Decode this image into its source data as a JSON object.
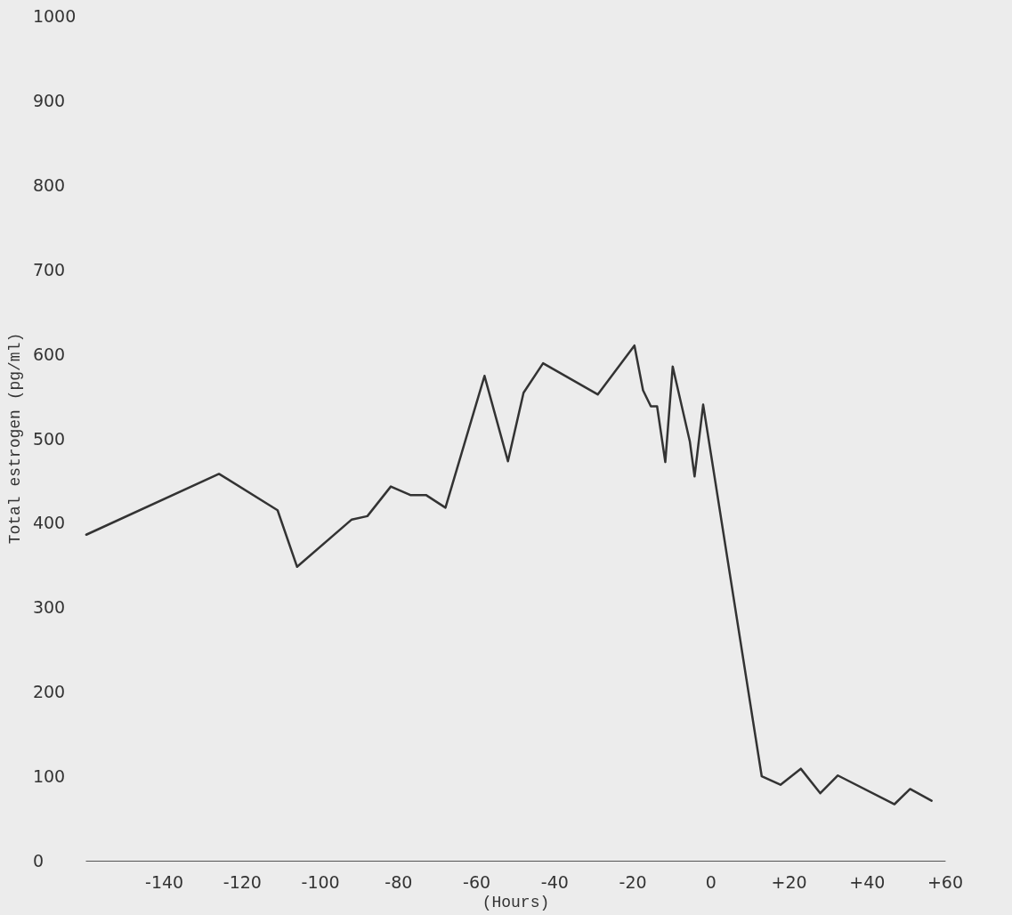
{
  "chart_data": {
    "type": "line",
    "xlabel": "(Hours)",
    "ylabel": "Total estrogen (pg/ml)",
    "x": [
      -160,
      -126,
      -111,
      -106,
      -92,
      -88,
      -82,
      -77,
      -73,
      -68,
      -58,
      -52,
      -48,
      -43,
      -29,
      -19.6,
      -17.4,
      -15.4,
      -13.8,
      -11.7,
      -9.8,
      -5.4,
      -4.2,
      -2,
      13,
      17.8,
      23,
      28,
      32.5,
      47,
      51,
      56.5
    ],
    "series": [
      {
        "color": "#333333",
        "values": [
          386,
          458,
          415,
          348,
          404,
          408,
          443,
          433,
          433,
          418,
          574,
          473,
          554,
          589,
          552,
          610,
          557,
          538,
          538,
          472,
          585,
          496,
          455,
          540,
          100,
          90,
          109,
          80,
          101,
          67,
          85,
          71
        ]
      }
    ],
    "xlim": [
      -160,
      60
    ],
    "xticks": [
      -140,
      -120,
      -100,
      -80,
      -60,
      -40,
      -20,
      0,
      {
        "value": 20,
        "label": "+20"
      },
      {
        "value": 40,
        "label": "+40"
      },
      {
        "value": 60,
        "label": "+60"
      }
    ],
    "ylim": [
      0,
      1000
    ],
    "yticks": [
      0,
      100,
      200,
      300,
      400,
      500,
      600,
      700,
      800,
      900,
      1000
    ],
    "grid": false,
    "marker": "none",
    "line_style": "solid"
  }
}
